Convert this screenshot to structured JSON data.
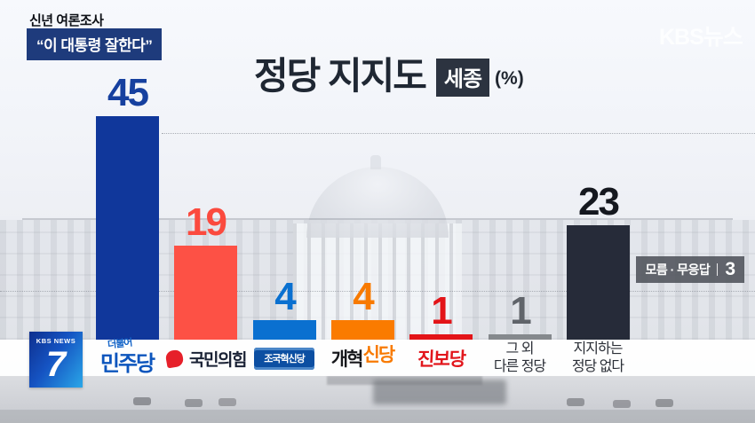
{
  "header": {
    "eyebrow": "신년 여론조사",
    "quote_badge": "“이 대통령 잘한다”"
  },
  "title": {
    "main": "정당 지지도",
    "region": "세종",
    "unit": "(%)"
  },
  "watermark": {
    "text": "KBS뉴스"
  },
  "chart_data": {
    "type": "bar",
    "title": "정당 지지도",
    "region": "세종",
    "unit": "%",
    "categories": [
      "더불어민주당",
      "국민의힘",
      "조국혁신당",
      "개혁신당",
      "진보당",
      "그 외 다른 정당",
      "지지하는 정당 없다"
    ],
    "values": [
      45,
      19,
      4,
      4,
      1,
      1,
      23
    ],
    "bar_colors": [
      "#10379b",
      "#fd5145",
      "#0a70d0",
      "#fa7b00",
      "#e31418",
      "#85898d",
      "#262b39"
    ],
    "value_colors": [
      "#16409f",
      "#fb4a3e",
      "#0a70d0",
      "#f87a00",
      "#e31418",
      "#60646a",
      "#15181f"
    ],
    "ylim": [
      0,
      50
    ],
    "grid": "faint dotted horizontal lines",
    "legend_position": "none",
    "note": {
      "label": "모름 · 무응답",
      "value": 3
    }
  },
  "note_box": {
    "label": "모름 · 무응답",
    "value": "3"
  },
  "party_labels": [
    {
      "top": "더불어",
      "main": "민주당"
    },
    {
      "main": "국민의힘"
    },
    {
      "main": "조국혁신당"
    },
    {
      "part1": "개혁",
      "part2": "신당"
    },
    {
      "main": "진보당"
    },
    {
      "line1": "그 외",
      "line2": "다른 정당"
    },
    {
      "line1": "지지하는",
      "line2": "정당 없다"
    }
  ],
  "station_logo": {
    "network": "KBS NEWS",
    "channel": "7"
  }
}
